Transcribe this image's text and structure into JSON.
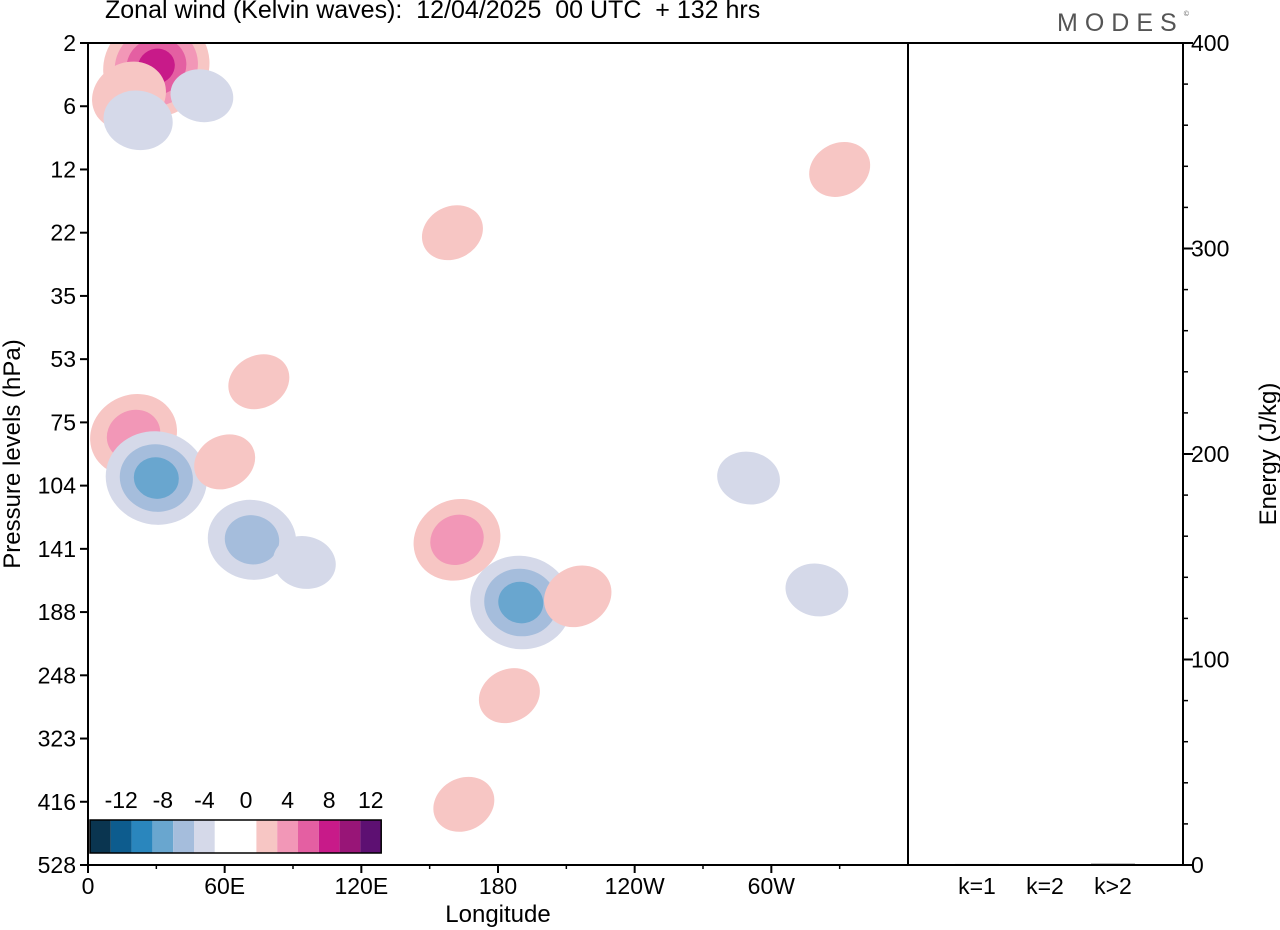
{
  "title": "Zonal wind (Kelvin waves):  12/04/2025  00 UTC  + 132 hrs",
  "brand": "MODES",
  "brand_mark": "©",
  "chart_data": [
    {
      "type": "heatmap",
      "xlabel": "Longitude",
      "ylabel": "Pressure levels (hPa)",
      "x_ticks": [
        "0",
        "60E",
        "120E",
        "180",
        "120W",
        "60W"
      ],
      "y_ticks": [
        "2",
        "6",
        "12",
        "22",
        "35",
        "53",
        "75",
        "104",
        "141",
        "188",
        "248",
        "323",
        "416",
        "528"
      ],
      "y_scale": "log-pressure (inverted)",
      "colorbar": {
        "labels": [
          "-12",
          "-8",
          "-4",
          "0",
          "4",
          "8",
          "12"
        ],
        "colors": [
          "#0a3550",
          "#0d5c8e",
          "#2a86bd",
          "#69a6cf",
          "#a5bddc",
          "#d5d9e9",
          "#ffffff",
          "#ffffff",
          "#f7c6c4",
          "#f297b7",
          "#e45fa2",
          "#c81a89",
          "#981577",
          "#5d1072"
        ]
      },
      "anomalies": [
        {
          "lon": 30,
          "p": 3,
          "value": 10
        },
        {
          "lon": 18,
          "p": 5,
          "value": 5
        },
        {
          "lon": 50,
          "p": 5,
          "value": -3
        },
        {
          "lon": 22,
          "p": 7,
          "value": -4
        },
        {
          "lon": 330,
          "p": 12,
          "value": 3
        },
        {
          "lon": 160,
          "p": 22,
          "value": 3
        },
        {
          "lon": 75,
          "p": 60,
          "value": 3
        },
        {
          "lon": 20,
          "p": 80,
          "value": 7
        },
        {
          "lon": 30,
          "p": 100,
          "value": -9
        },
        {
          "lon": 60,
          "p": 92,
          "value": 3
        },
        {
          "lon": 72,
          "p": 135,
          "value": -7
        },
        {
          "lon": 95,
          "p": 150,
          "value": -3
        },
        {
          "lon": 162,
          "p": 135,
          "value": 7
        },
        {
          "lon": 190,
          "p": 180,
          "value": -9
        },
        {
          "lon": 215,
          "p": 175,
          "value": 4
        },
        {
          "lon": 185,
          "p": 270,
          "value": 3
        },
        {
          "lon": 165,
          "p": 420,
          "value": 3
        },
        {
          "lon": 290,
          "p": 100,
          "value": -3
        },
        {
          "lon": 320,
          "p": 170,
          "value": -3
        }
      ]
    },
    {
      "type": "bar",
      "categories": [
        "k=1",
        "k=2",
        "k>2"
      ],
      "values": [
        0.5,
        0.3,
        0.6
      ],
      "ylabel": "Energy (J/kg)",
      "ylim": [
        0,
        400
      ],
      "y_ticks": [
        "0",
        "100",
        "200",
        "300",
        "400"
      ]
    }
  ]
}
